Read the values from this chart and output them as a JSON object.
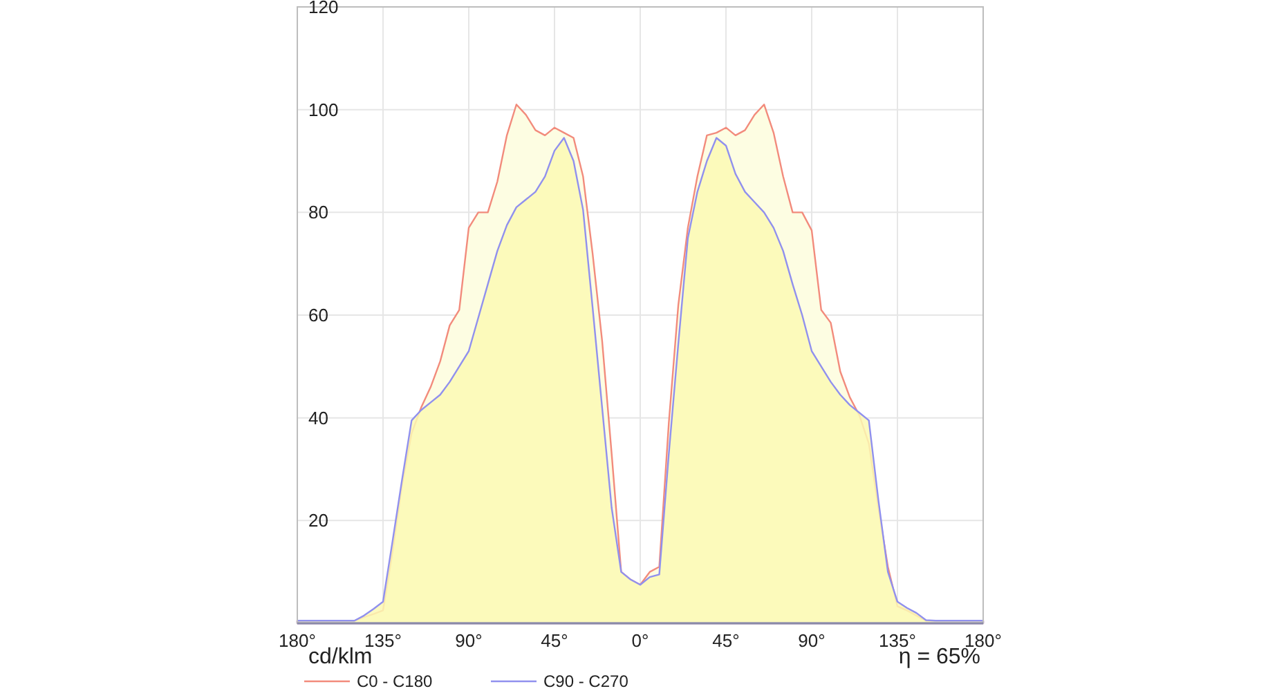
{
  "chart_data": {
    "type": "area",
    "annotations": [
      "cd/klm",
      "η = 65%"
    ],
    "x": [
      -180,
      -175,
      -170,
      -165,
      -160,
      -155,
      -150,
      -145,
      -140,
      -135,
      -130,
      -125,
      -120,
      -115,
      -110,
      -105,
      -100,
      -95,
      -90,
      -85,
      -80,
      -75,
      -70,
      -65,
      -60,
      -55,
      -50,
      -45,
      -40,
      -35,
      -30,
      -25,
      -20,
      -15,
      -10,
      -5,
      0,
      5,
      10,
      15,
      20,
      25,
      30,
      35,
      40,
      45,
      50,
      55,
      60,
      65,
      70,
      75,
      80,
      85,
      90,
      95,
      100,
      105,
      110,
      115,
      120,
      125,
      130,
      135,
      140,
      145,
      150,
      155,
      160,
      165,
      170,
      175,
      180
    ],
    "series": [
      {
        "name": "C0 - C180",
        "color": "#f28b7c",
        "values": [
          0.5,
          0.5,
          0.5,
          0.5,
          0.5,
          0.5,
          0.5,
          1.2,
          1.8,
          2.5,
          14,
          27,
          37,
          42,
          46,
          51,
          58,
          61,
          77,
          80,
          80,
          86,
          95,
          101,
          99,
          96,
          95,
          96.5,
          95.5,
          94.5,
          87,
          72,
          55,
          33,
          10,
          8.5,
          7.5,
          10,
          11,
          39,
          62,
          77,
          87,
          95,
          95.5,
          96.5,
          95,
          96,
          99,
          101,
          95.5,
          87,
          80,
          80,
          76.5,
          61,
          58.5,
          49,
          44,
          40.5,
          35,
          22.5,
          11,
          3.3,
          2.5,
          1.5,
          0.5,
          0.5,
          0.5,
          0.5,
          0.5,
          0.5,
          0.5
        ]
      },
      {
        "name": "C90 - C270",
        "color": "#9090ee",
        "values": [
          0.5,
          0.5,
          0.5,
          0.5,
          0.5,
          0.5,
          0.5,
          1.5,
          2.8,
          4.2,
          16,
          28,
          39.5,
          41.5,
          43,
          44.5,
          47,
          50,
          53,
          59.5,
          66,
          72.5,
          77.5,
          81,
          82.5,
          84,
          87,
          92,
          94.5,
          90,
          80.5,
          61.5,
          42,
          22.5,
          10,
          8.5,
          7.5,
          9,
          9.5,
          33,
          54.5,
          75,
          84,
          90,
          94.5,
          93,
          87.5,
          84,
          82,
          80,
          77,
          72.5,
          66,
          60,
          53,
          50,
          47,
          44.5,
          42.5,
          41,
          39.5,
          24,
          10,
          4.2,
          3,
          2,
          0.6,
          0.5,
          0.5,
          0.5,
          0.5,
          0.5,
          0.5
        ]
      }
    ],
    "xlim": [
      -180,
      180
    ],
    "xticks": [
      {
        "value": -180,
        "label": "180°"
      },
      {
        "value": -135,
        "label": "135°"
      },
      {
        "value": -90,
        "label": "90°"
      },
      {
        "value": -45,
        "label": "45°"
      },
      {
        "value": 0,
        "label": "0°"
      },
      {
        "value": 45,
        "label": "45°"
      },
      {
        "value": 90,
        "label": "90°"
      },
      {
        "value": 135,
        "label": "135°"
      },
      {
        "value": 180,
        "label": "180°"
      }
    ],
    "ylim": [
      0,
      120
    ],
    "yticks": [
      20,
      40,
      60,
      80,
      100,
      120
    ],
    "grid": true,
    "legend": "bottom"
  }
}
